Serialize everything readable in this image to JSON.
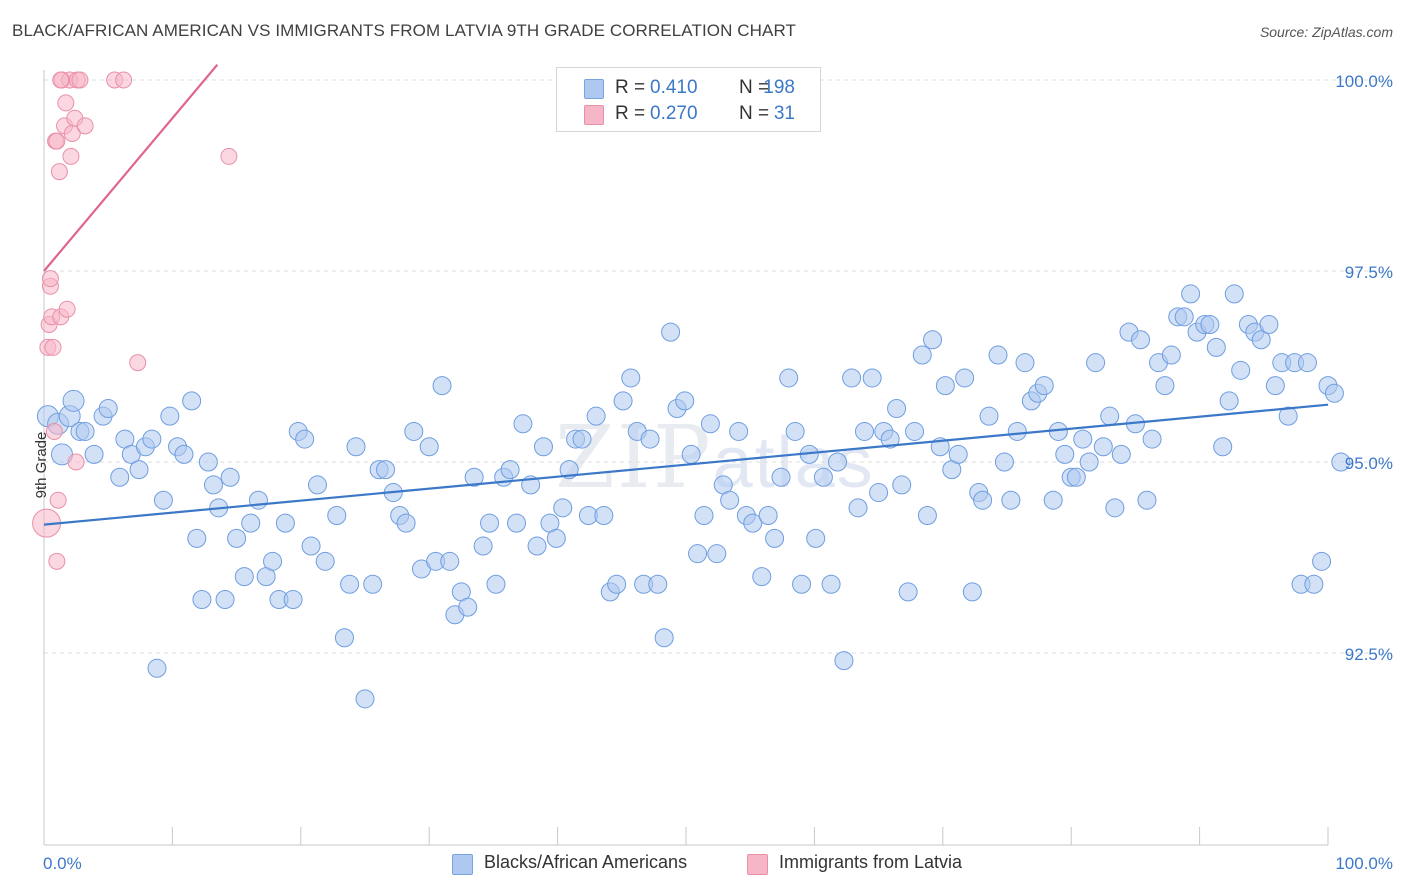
{
  "header": {
    "title": "BLACK/AFRICAN AMERICAN VS IMMIGRANTS FROM LATVIA 9TH GRADE CORRELATION CHART",
    "source": "Source: ZipAtlas.com"
  },
  "watermark": {
    "zip": "ZIP",
    "atlas": "atlas"
  },
  "legend": {
    "rows": [
      {
        "r_label": "R =",
        "r_value": "0.410",
        "n_label": "N =",
        "n_value": "198",
        "color": "#aec8f0"
      },
      {
        "r_label": "R =",
        "r_value": "0.270",
        "n_label": "N =",
        "n_value": "31",
        "color": "#f7b6c8"
      }
    ]
  },
  "bottom_legend": [
    {
      "label": "Blacks/African Americans",
      "color": "#aec8f0"
    },
    {
      "label": "Immigrants from Latvia",
      "color": "#f7b6c8"
    }
  ],
  "chart_data": {
    "type": "scatter",
    "title": "BLACK/AFRICAN AMERICAN VS IMMIGRANTS FROM LATVIA 9TH GRADE CORRELATION CHART",
    "xlabel": "",
    "ylabel": "9th Grade",
    "xlim": [
      0,
      100
    ],
    "ylim": [
      90.0,
      100.25
    ],
    "x_tick_labels": [
      "0.0%",
      "100.0%"
    ],
    "y_ticks": [
      92.5,
      95.0,
      97.5,
      100.0
    ],
    "y_tick_labels": [
      "92.5%",
      "95.0%",
      "97.5%",
      "100.0%"
    ],
    "grid": true,
    "colors": {
      "blue": "#3c78c8",
      "pink": "#e0648c",
      "blue_fill": "#aec8f0",
      "pink_fill": "#f7b6c8"
    },
    "series": [
      {
        "name": "Blacks/African Americans",
        "color": "#3c78c8",
        "trend": {
          "x": [
            0,
            100
          ],
          "y": [
            94.18,
            95.75
          ]
        },
        "points": [
          [
            0.3,
            95.6
          ],
          [
            1.1,
            95.5
          ],
          [
            1.4,
            95.1
          ],
          [
            2.0,
            95.6
          ],
          [
            2.3,
            95.8
          ],
          [
            2.8,
            95.4
          ],
          [
            3.2,
            95.4
          ],
          [
            3.9,
            95.1
          ],
          [
            4.6,
            95.6
          ],
          [
            5.0,
            95.7
          ],
          [
            5.9,
            94.8
          ],
          [
            6.3,
            95.3
          ],
          [
            6.8,
            95.1
          ],
          [
            7.4,
            94.9
          ],
          [
            7.9,
            95.2
          ],
          [
            8.4,
            95.3
          ],
          [
            8.8,
            92.3
          ],
          [
            9.3,
            94.5
          ],
          [
            9.8,
            95.6
          ],
          [
            10.4,
            95.2
          ],
          [
            10.9,
            95.1
          ],
          [
            11.5,
            95.8
          ],
          [
            11.9,
            94.0
          ],
          [
            12.3,
            93.2
          ],
          [
            12.8,
            95.0
          ],
          [
            13.2,
            94.7
          ],
          [
            13.6,
            94.4
          ],
          [
            14.1,
            93.2
          ],
          [
            14.5,
            94.8
          ],
          [
            15.0,
            94.0
          ],
          [
            15.6,
            93.5
          ],
          [
            16.1,
            94.2
          ],
          [
            16.7,
            94.5
          ],
          [
            17.3,
            93.5
          ],
          [
            17.8,
            93.7
          ],
          [
            18.3,
            93.2
          ],
          [
            18.8,
            94.2
          ],
          [
            19.4,
            93.2
          ],
          [
            19.8,
            95.4
          ],
          [
            20.3,
            95.3
          ],
          [
            20.8,
            93.9
          ],
          [
            21.3,
            94.7
          ],
          [
            21.9,
            93.7
          ],
          [
            22.8,
            94.3
          ],
          [
            23.4,
            92.7
          ],
          [
            23.8,
            93.4
          ],
          [
            24.3,
            95.2
          ],
          [
            25.0,
            91.9
          ],
          [
            25.6,
            93.4
          ],
          [
            26.1,
            94.9
          ],
          [
            26.6,
            94.9
          ],
          [
            27.2,
            94.6
          ],
          [
            27.7,
            94.3
          ],
          [
            28.2,
            94.2
          ],
          [
            28.8,
            95.4
          ],
          [
            29.4,
            93.6
          ],
          [
            30.0,
            95.2
          ],
          [
            30.5,
            93.7
          ],
          [
            31.0,
            96.0
          ],
          [
            31.6,
            93.7
          ],
          [
            32.0,
            93.0
          ],
          [
            32.5,
            93.3
          ],
          [
            33.0,
            93.1
          ],
          [
            33.5,
            94.8
          ],
          [
            34.2,
            93.9
          ],
          [
            34.7,
            94.2
          ],
          [
            35.2,
            93.4
          ],
          [
            35.8,
            94.8
          ],
          [
            36.3,
            94.9
          ],
          [
            36.8,
            94.2
          ],
          [
            37.3,
            95.5
          ],
          [
            37.9,
            94.7
          ],
          [
            38.4,
            93.9
          ],
          [
            38.9,
            95.2
          ],
          [
            39.4,
            94.2
          ],
          [
            39.9,
            94.0
          ],
          [
            40.4,
            94.4
          ],
          [
            40.9,
            94.9
          ],
          [
            41.4,
            95.3
          ],
          [
            41.9,
            95.3
          ],
          [
            42.4,
            94.3
          ],
          [
            43.0,
            95.6
          ],
          [
            43.6,
            94.3
          ],
          [
            44.1,
            93.3
          ],
          [
            44.6,
            93.4
          ],
          [
            45.1,
            95.8
          ],
          [
            45.7,
            96.1
          ],
          [
            46.2,
            95.4
          ],
          [
            46.7,
            93.4
          ],
          [
            47.2,
            95.3
          ],
          [
            47.8,
            93.4
          ],
          [
            48.3,
            92.7
          ],
          [
            48.8,
            96.7
          ],
          [
            49.3,
            95.7
          ],
          [
            49.9,
            95.8
          ],
          [
            50.4,
            95.1
          ],
          [
            50.9,
            93.8
          ],
          [
            51.4,
            94.3
          ],
          [
            51.9,
            95.5
          ],
          [
            52.4,
            93.8
          ],
          [
            52.9,
            94.7
          ],
          [
            53.4,
            94.5
          ],
          [
            54.1,
            95.4
          ],
          [
            54.7,
            94.3
          ],
          [
            55.2,
            94.2
          ],
          [
            55.9,
            93.5
          ],
          [
            56.4,
            94.3
          ],
          [
            56.9,
            94.0
          ],
          [
            57.4,
            94.8
          ],
          [
            58.0,
            96.1
          ],
          [
            58.5,
            95.4
          ],
          [
            59.0,
            93.4
          ],
          [
            59.6,
            95.1
          ],
          [
            60.1,
            94.0
          ],
          [
            60.7,
            94.8
          ],
          [
            61.3,
            93.4
          ],
          [
            61.8,
            95.0
          ],
          [
            62.3,
            92.4
          ],
          [
            62.9,
            96.1
          ],
          [
            63.4,
            94.4
          ],
          [
            63.9,
            95.4
          ],
          [
            64.5,
            96.1
          ],
          [
            65.0,
            94.6
          ],
          [
            65.4,
            95.4
          ],
          [
            65.9,
            95.3
          ],
          [
            66.4,
            95.7
          ],
          [
            66.8,
            94.7
          ],
          [
            67.3,
            93.3
          ],
          [
            67.8,
            95.4
          ],
          [
            68.4,
            96.4
          ],
          [
            68.8,
            94.3
          ],
          [
            69.2,
            96.6
          ],
          [
            69.8,
            95.2
          ],
          [
            70.2,
            96.0
          ],
          [
            70.7,
            94.9
          ],
          [
            71.2,
            95.1
          ],
          [
            71.7,
            96.1
          ],
          [
            72.3,
            93.3
          ],
          [
            72.8,
            94.6
          ],
          [
            73.1,
            94.5
          ],
          [
            73.6,
            95.6
          ],
          [
            74.3,
            96.4
          ],
          [
            74.8,
            95.0
          ],
          [
            75.3,
            94.5
          ],
          [
            75.8,
            95.4
          ],
          [
            76.4,
            96.3
          ],
          [
            76.9,
            95.8
          ],
          [
            77.4,
            95.9
          ],
          [
            77.9,
            96.0
          ],
          [
            78.6,
            94.5
          ],
          [
            79.0,
            95.4
          ],
          [
            79.5,
            95.1
          ],
          [
            80.0,
            94.8
          ],
          [
            80.4,
            94.8
          ],
          [
            80.9,
            95.3
          ],
          [
            81.4,
            95.0
          ],
          [
            81.9,
            96.3
          ],
          [
            82.5,
            95.2
          ],
          [
            83.0,
            95.6
          ],
          [
            83.4,
            94.4
          ],
          [
            83.9,
            95.1
          ],
          [
            84.5,
            96.7
          ],
          [
            85.0,
            95.5
          ],
          [
            85.4,
            96.6
          ],
          [
            85.9,
            94.5
          ],
          [
            86.3,
            95.3
          ],
          [
            86.8,
            96.3
          ],
          [
            87.3,
            96.0
          ],
          [
            87.8,
            96.4
          ],
          [
            88.3,
            96.9
          ],
          [
            88.8,
            96.9
          ],
          [
            89.3,
            97.2
          ],
          [
            89.8,
            96.7
          ],
          [
            90.4,
            96.8
          ],
          [
            90.8,
            96.8
          ],
          [
            91.3,
            96.5
          ],
          [
            91.8,
            95.2
          ],
          [
            92.3,
            95.8
          ],
          [
            92.7,
            97.2
          ],
          [
            93.2,
            96.2
          ],
          [
            93.8,
            96.8
          ],
          [
            94.3,
            96.7
          ],
          [
            94.8,
            96.6
          ],
          [
            95.4,
            96.8
          ],
          [
            95.9,
            96.0
          ],
          [
            96.4,
            96.3
          ],
          [
            96.9,
            95.6
          ],
          [
            97.4,
            96.3
          ],
          [
            97.9,
            93.4
          ],
          [
            98.4,
            96.3
          ],
          [
            98.9,
            93.4
          ],
          [
            99.5,
            93.7
          ],
          [
            100.0,
            96.0
          ],
          [
            100.5,
            95.9
          ],
          [
            101.0,
            95.0
          ]
        ]
      },
      {
        "name": "Immigrants from Latvia",
        "color": "#e0648c",
        "trend": {
          "x": [
            0,
            13.5
          ],
          "y": [
            97.5,
            100.2
          ]
        },
        "points": [
          [
            0.2,
            94.2
          ],
          [
            0.3,
            96.5
          ],
          [
            0.4,
            96.8
          ],
          [
            0.5,
            97.3
          ],
          [
            0.5,
            97.4
          ],
          [
            0.6,
            96.9
          ],
          [
            0.7,
            96.5
          ],
          [
            0.8,
            95.4
          ],
          [
            0.9,
            99.2
          ],
          [
            1.0,
            93.7
          ],
          [
            1.1,
            94.5
          ],
          [
            1.2,
            98.8
          ],
          [
            1.3,
            96.9
          ],
          [
            1.4,
            100.0
          ],
          [
            1.6,
            99.4
          ],
          [
            1.7,
            99.7
          ],
          [
            1.8,
            97.0
          ],
          [
            2.0,
            100.0
          ],
          [
            2.1,
            99.0
          ],
          [
            2.2,
            99.3
          ],
          [
            2.4,
            99.5
          ],
          [
            2.5,
            95.0
          ],
          [
            2.6,
            100.0
          ],
          [
            2.8,
            100.0
          ],
          [
            3.2,
            99.4
          ],
          [
            1.3,
            100.0
          ],
          [
            5.5,
            100.0
          ],
          [
            6.2,
            100.0
          ],
          [
            7.3,
            96.3
          ],
          [
            14.4,
            99.0
          ],
          [
            1.0,
            99.2
          ]
        ]
      }
    ]
  }
}
